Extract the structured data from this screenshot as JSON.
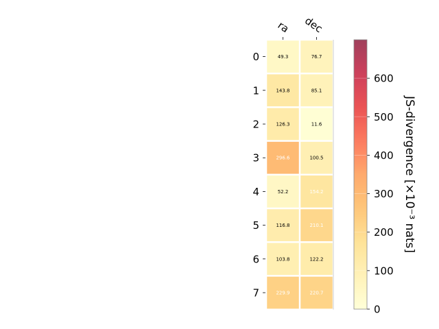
{
  "chart_data": {
    "type": "heatmap",
    "columns": [
      "ra",
      "dec"
    ],
    "rows": [
      "0",
      "1",
      "2",
      "3",
      "4",
      "5",
      "6",
      "7"
    ],
    "values": [
      [
        49.3,
        76.7
      ],
      [
        143.8,
        85.1
      ],
      [
        126.3,
        11.6
      ],
      [
        296.6,
        100.5
      ],
      [
        52.2,
        154.2
      ],
      [
        116.8,
        210.1
      ],
      [
        103.8,
        122.2
      ],
      [
        229.9,
        220.7
      ]
    ],
    "value_labels": [
      [
        "49.3",
        "76.7"
      ],
      [
        "143.8",
        "85.1"
      ],
      [
        "126.3",
        "11.6"
      ],
      [
        "296.6",
        "100.5"
      ],
      [
        "52.2",
        "154.2"
      ],
      [
        "116.8",
        "210.1"
      ],
      [
        "103.8",
        "122.2"
      ],
      [
        "229.9",
        "220.7"
      ]
    ],
    "colorbar": {
      "label": "JS-divergence [×10⁻³ nats]",
      "range": [
        0,
        700
      ],
      "ticks": [
        "0",
        "100",
        "200",
        "300",
        "400",
        "500",
        "600"
      ],
      "colormap": "YlOrRd"
    }
  }
}
